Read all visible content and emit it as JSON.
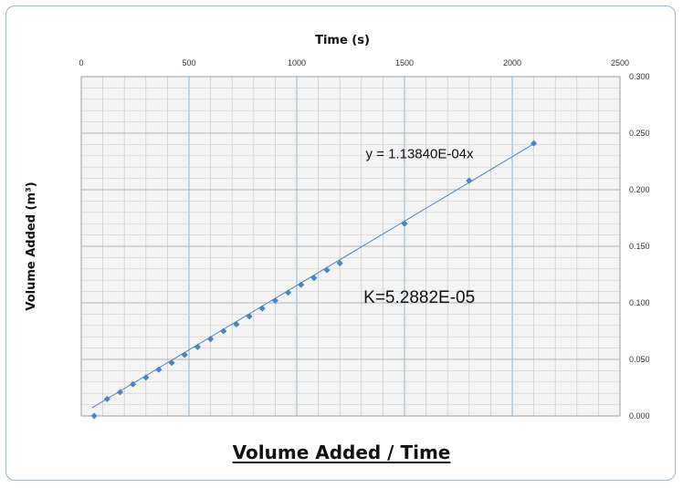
{
  "chart_data": {
    "type": "scatter",
    "title": "Volume Added / Time",
    "xlabel": "Time (s)",
    "ylabel": "Volume Added (m³)",
    "xlim": [
      0,
      2500
    ],
    "ylim": [
      0,
      0.3
    ],
    "x_ticks": [
      "0",
      "500",
      "1000",
      "1500",
      "2000",
      "2500"
    ],
    "y_ticks": [
      "0.000",
      "0.050",
      "0.100",
      "0.150",
      "0.200",
      "0.250",
      "0.300"
    ],
    "x_axis_position": "top",
    "y_axis_position": "right",
    "grid": true,
    "series": [
      {
        "color": "#4a86c6",
        "points": [
          [
            60,
            0.0
          ],
          [
            120,
            0.015
          ],
          [
            180,
            0.021
          ],
          [
            240,
            0.028
          ],
          [
            300,
            0.034
          ],
          [
            360,
            0.041
          ],
          [
            420,
            0.047
          ],
          [
            480,
            0.054
          ],
          [
            540,
            0.061
          ],
          [
            600,
            0.068
          ],
          [
            660,
            0.075
          ],
          [
            720,
            0.081
          ],
          [
            780,
            0.088
          ],
          [
            840,
            0.095
          ],
          [
            900,
            0.102
          ],
          [
            960,
            0.109
          ],
          [
            1020,
            0.116
          ],
          [
            1080,
            0.122
          ],
          [
            1140,
            0.129
          ],
          [
            1200,
            0.135
          ],
          [
            1500,
            0.17
          ],
          [
            1800,
            0.208
          ],
          [
            2100,
            0.241
          ]
        ]
      }
    ],
    "trendline": {
      "color": "#4a86c6",
      "x_start": 50,
      "x_end": 2100,
      "slope": 0.00011384,
      "intercept": 0.0015
    },
    "annotations": [
      {
        "text": "y = 1.13840E-04x",
        "x": 1320,
        "y": 0.228,
        "size": "medium"
      },
      {
        "text": "K=5.2882E-05",
        "x": 1310,
        "y": 0.1,
        "size": "large"
      }
    ]
  }
}
